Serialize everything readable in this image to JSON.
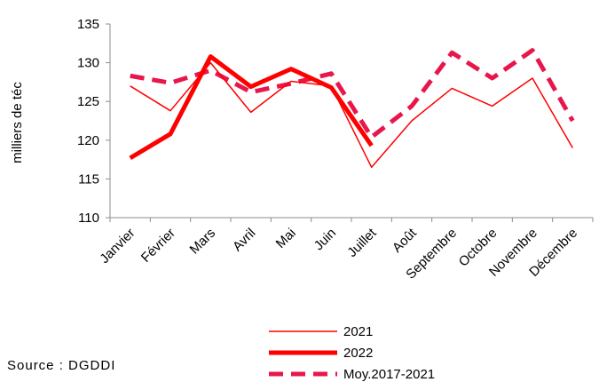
{
  "chart_data": {
    "type": "line",
    "title": "",
    "xlabel": "",
    "ylabel": "milliers de téc",
    "categories": [
      "Janvier",
      "Février",
      "Mars",
      "Avril",
      "Mai",
      "Juin",
      "Juillet",
      "Août",
      "Septembre",
      "Octobre",
      "Novembre",
      "Décembre"
    ],
    "ylim": [
      110,
      135
    ],
    "yticks": [
      110,
      115,
      120,
      125,
      130,
      135
    ],
    "grid": false,
    "legend": "bottom",
    "series": [
      {
        "name": "2021",
        "style": "thin",
        "color": "#ff0000",
        "values": [
          127.0,
          123.8,
          130.0,
          123.6,
          127.6,
          127.0,
          116.5,
          122.5,
          126.7,
          124.4,
          128.0,
          119.0
        ]
      },
      {
        "name": "2022",
        "style": "thick",
        "color": "#ff0000",
        "values": [
          117.7,
          120.8,
          130.8,
          126.9,
          129.2,
          126.8,
          119.3,
          null,
          null,
          null,
          null,
          null
        ]
      },
      {
        "name": "Moy.2017-2021",
        "style": "dashed",
        "color": "#e8174b",
        "values": [
          128.3,
          127.4,
          129.0,
          126.2,
          127.3,
          128.6,
          120.4,
          124.4,
          131.3,
          128.0,
          131.6,
          122.5
        ]
      }
    ]
  },
  "source": "Source : DGDDI"
}
